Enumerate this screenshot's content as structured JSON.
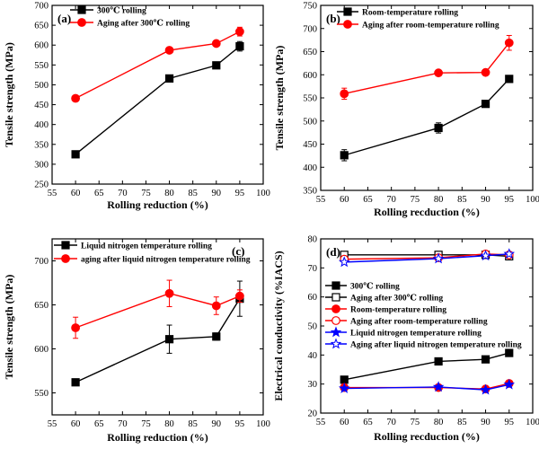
{
  "chart_data": [
    {
      "type": "line",
      "panel_label": "(a)",
      "xlabel": "Rolling reduction (%)",
      "ylabel": "Tensile strength (MPa)",
      "xlim": [
        55,
        100
      ],
      "ylim": [
        250,
        700
      ],
      "xticks": [
        55,
        60,
        65,
        70,
        75,
        80,
        85,
        90,
        95,
        100
      ],
      "yticks": [
        250,
        300,
        350,
        400,
        450,
        500,
        550,
        600,
        650,
        700
      ],
      "legend_position": "top-left",
      "grid": false,
      "series": [
        {
          "name": "300℃ rolling",
          "color": "#000000",
          "marker": "square-filled",
          "x": [
            60,
            80,
            90,
            95
          ],
          "y": [
            325,
            516,
            549,
            597
          ],
          "err": [
            0,
            0,
            0,
            12
          ]
        },
        {
          "name": "Aging after 300℃ rolling",
          "color": "#ff0000",
          "marker": "circle-filled",
          "x": [
            60,
            80,
            90,
            95
          ],
          "y": [
            466,
            587,
            604,
            634
          ],
          "err": [
            0,
            0,
            0,
            11
          ]
        }
      ]
    },
    {
      "type": "line",
      "panel_label": "(b)",
      "xlabel": "Rolling recduction (%)",
      "ylabel": "Tensile strength (MPa)",
      "xlim": [
        55,
        100
      ],
      "ylim": [
        350,
        750
      ],
      "xticks": [
        55,
        60,
        65,
        70,
        75,
        80,
        85,
        90,
        95,
        100
      ],
      "yticks": [
        350,
        400,
        450,
        500,
        550,
        600,
        650,
        700,
        750
      ],
      "legend_position": "top-left",
      "grid": false,
      "series": [
        {
          "name": "Room-temperature rolling",
          "color": "#000000",
          "marker": "square-filled",
          "x": [
            60,
            80,
            90,
            95
          ],
          "y": [
            426,
            485,
            537,
            591
          ],
          "err": [
            12,
            11,
            0,
            0
          ]
        },
        {
          "name": "Aging after room-temperature rolling",
          "color": "#ff0000",
          "marker": "circle-filled",
          "x": [
            60,
            80,
            90,
            95
          ],
          "y": [
            559,
            604,
            605,
            669
          ],
          "err": [
            12,
            6,
            0,
            16
          ]
        }
      ]
    },
    {
      "type": "line",
      "panel_label": "(c)",
      "xlabel": "Rolling reduction (%)",
      "ylabel": "Tensile strength (MPa)",
      "xlim": [
        55,
        100
      ],
      "ylim": [
        525,
        725
      ],
      "xticks": [
        55,
        60,
        65,
        70,
        75,
        80,
        85,
        90,
        95,
        100
      ],
      "yticks": [
        550,
        600,
        650,
        700
      ],
      "legend_position": "top-left",
      "grid": false,
      "series": [
        {
          "name": "Liquid nitrogen temperature rolling",
          "color": "#000000",
          "marker": "square-filled",
          "x": [
            60,
            80,
            90,
            95
          ],
          "y": [
            562,
            611,
            614,
            657
          ],
          "err": [
            0,
            16,
            4,
            20
          ]
        },
        {
          "name": "aging after liquid nitrogen temperature rolling",
          "color": "#ff0000",
          "marker": "circle-filled",
          "x": [
            60,
            80,
            90,
            95
          ],
          "y": [
            624,
            663,
            649,
            660
          ],
          "err": [
            12,
            15,
            10,
            7
          ]
        }
      ]
    },
    {
      "type": "line",
      "panel_label": "(d)",
      "xlabel": "Rolling recduction (%)",
      "ylabel": "Electrical conductivity (%IACS)",
      "xlim": [
        55,
        100
      ],
      "ylim": [
        20,
        80
      ],
      "xticks": [
        55,
        60,
        65,
        70,
        75,
        80,
        85,
        90,
        95,
        100
      ],
      "yticks": [
        20,
        30,
        40,
        50,
        60,
        70,
        80
      ],
      "legend_position": "center-left",
      "grid": false,
      "series": [
        {
          "name": "300℃ rolling",
          "color": "#000000",
          "marker": "square-filled",
          "x": [
            60,
            80,
            90,
            95
          ],
          "y": [
            31.5,
            37.8,
            38.5,
            40.7
          ]
        },
        {
          "name": "Aging after 300℃ rolling",
          "color": "#000000",
          "marker": "square-open",
          "x": [
            60,
            80,
            90,
            95
          ],
          "y": [
            74.5,
            74.5,
            74.5,
            74.0
          ]
        },
        {
          "name": "Room-temperature rolling",
          "color": "#ff0000",
          "marker": "circle-filled",
          "x": [
            60,
            80,
            90,
            95
          ],
          "y": [
            28.8,
            28.8,
            28.3,
            30.2
          ]
        },
        {
          "name": "Aging after room-temperature rolling",
          "color": "#ff0000",
          "marker": "circle-open",
          "x": [
            60,
            80,
            90,
            95
          ],
          "y": [
            73.0,
            73.5,
            74.8,
            74.5
          ]
        },
        {
          "name": "Liquid nitrogen temperature rolling",
          "color": "#0000ff",
          "marker": "star-filled",
          "x": [
            60,
            80,
            90,
            95
          ],
          "y": [
            28.5,
            29.0,
            28.0,
            29.8
          ]
        },
        {
          "name": "Aging after  liquid nitrogen temperature rolling",
          "color": "#0000ff",
          "marker": "star-open",
          "x": [
            60,
            80,
            90,
            95
          ],
          "y": [
            72.0,
            73.2,
            74.2,
            74.8
          ]
        }
      ]
    }
  ]
}
